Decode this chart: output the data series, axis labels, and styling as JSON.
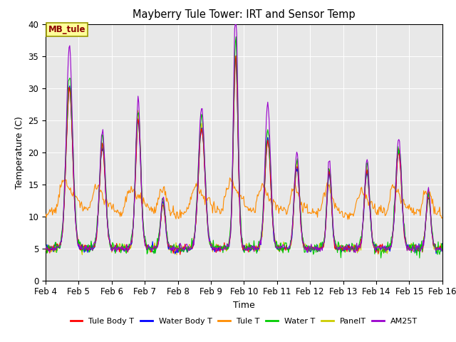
{
  "title": "Mayberry Tule Tower: IRT and Sensor Temp",
  "xlabel": "Time",
  "ylabel": "Temperature (C)",
  "ylim": [
    0,
    40
  ],
  "xtick_labels": [
    "Feb 4",
    "Feb 5",
    "Feb 6",
    "Feb 7",
    "Feb 8",
    "Feb 9",
    "Feb 10",
    "Feb 11",
    "Feb 12",
    "Feb 13",
    "Feb 14",
    "Feb 15",
    "Feb 16"
  ],
  "series_colors": {
    "Tule Body T": "#ff0000",
    "Water Body T": "#0000ff",
    "Tule T": "#ff8c00",
    "Water T": "#00cc00",
    "PanelT": "#cccc00",
    "AM25T": "#9900cc"
  },
  "legend_label": "MB_tule",
  "legend_box_color": "#ffff99",
  "legend_box_edge": "#999900",
  "background_color": "#e8e8e8"
}
